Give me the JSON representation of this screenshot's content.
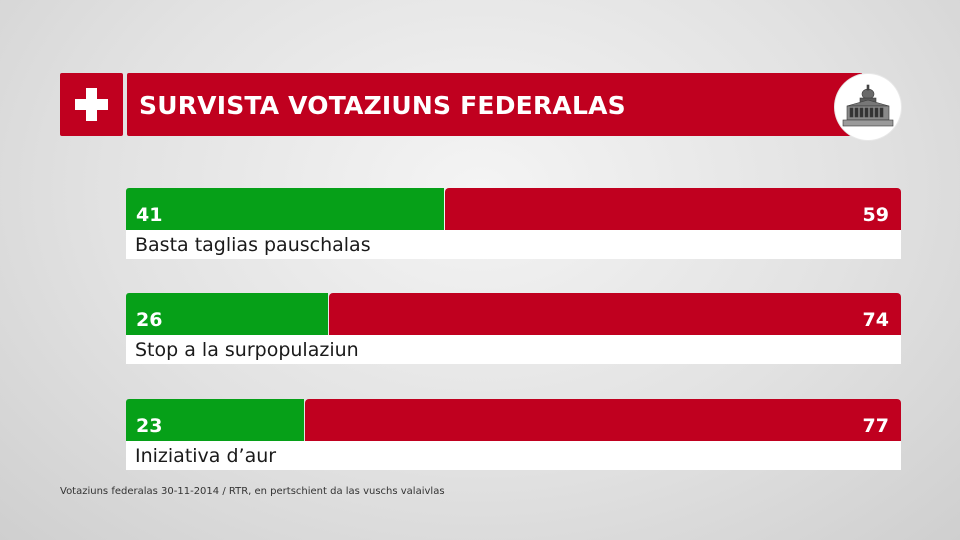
{
  "header": {
    "title": "SURVISTA VOTAZIUNS FEDERALAS",
    "flag_icon": "swiss-cross",
    "emblem_icon": "federal-palace-icon"
  },
  "colors": {
    "yes": "#06a018",
    "no": "#c0001f",
    "label_bg": "#ffffff"
  },
  "chart_data": {
    "type": "bar",
    "orientation": "horizontal-stacked-100",
    "title": "SURVISTA VOTAZIUNS FEDERALAS",
    "categories": [
      "Basta taglias pauschalas",
      "Stop a la surpopulaziun",
      "Iniziativa d’aur"
    ],
    "series": [
      {
        "name": "yes",
        "values": [
          41,
          26,
          23
        ]
      },
      {
        "name": "no",
        "values": [
          59,
          74,
          77
        ]
      }
    ],
    "xlim": [
      0,
      100
    ],
    "rows": [
      {
        "label": "Basta taglias pauschalas",
        "yes": 41,
        "no": 59
      },
      {
        "label": "Stop a la surpopulaziun",
        "yes": 26,
        "no": 74
      },
      {
        "label": "Iniziativa d’aur",
        "yes": 23,
        "no": 77
      }
    ]
  },
  "footer": {
    "source": "Votaziuns federalas 30-11-2014 / RTR, en pertschient da las vuschs valaivlas"
  }
}
